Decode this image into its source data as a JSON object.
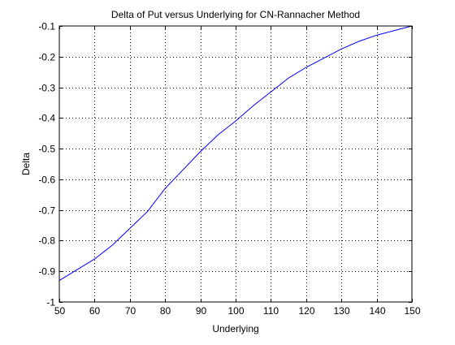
{
  "chart_data": {
    "type": "line",
    "title": "Delta of Put versus Underlying for CN-Rannacher Method",
    "xlabel": "Underlying",
    "ylabel": "Delta",
    "xlim": [
      50,
      150
    ],
    "ylim": [
      -1,
      -0.1
    ],
    "grid": true,
    "x_ticks": [
      50,
      60,
      70,
      80,
      90,
      100,
      110,
      120,
      130,
      140,
      150
    ],
    "y_ticks": [
      -1,
      -0.9,
      -0.8,
      -0.7,
      -0.6,
      -0.5,
      -0.4,
      -0.3,
      -0.2,
      -0.1
    ],
    "x_tick_labels": [
      "50",
      "60",
      "70",
      "80",
      "90",
      "100",
      "110",
      "120",
      "130",
      "140",
      "150"
    ],
    "y_tick_labels": [
      "-1",
      "-0.9",
      "-0.8",
      "-0.7",
      "-0.6",
      "-0.5",
      "-0.4",
      "-0.3",
      "-0.2",
      "-0.1"
    ],
    "series": [
      {
        "color": "#0000ff",
        "x": [
          50,
          55,
          60,
          65,
          70,
          75,
          80,
          85,
          90,
          95,
          100,
          105,
          110,
          115,
          120,
          125,
          130,
          135,
          140,
          145,
          150
        ],
        "y": [
          -0.93,
          -0.895,
          -0.86,
          -0.815,
          -0.76,
          -0.705,
          -0.63,
          -0.57,
          -0.51,
          -0.455,
          -0.41,
          -0.36,
          -0.315,
          -0.27,
          -0.235,
          -0.205,
          -0.175,
          -0.15,
          -0.13,
          -0.115,
          -0.1
        ]
      }
    ]
  }
}
